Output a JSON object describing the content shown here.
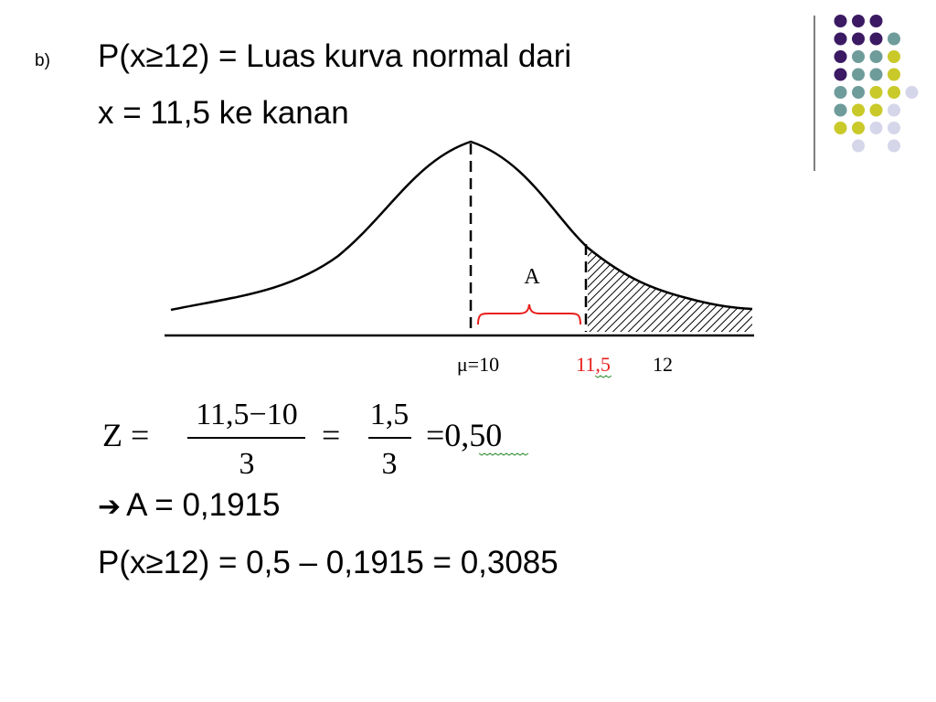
{
  "bullet": "b)",
  "line1": "P(x≥12) = Luas kurva normal dari",
  "line2": "x = 11,5 ke kanan",
  "figure": {
    "area_label": "A",
    "mu_label": "μ=10",
    "x115_label": "11,5",
    "x12_label": "12"
  },
  "formula": {
    "z_label": "Z =",
    "frac1_num": "11,5−10",
    "frac1_den": "3",
    "eq1": "=",
    "frac2_num": "1,5",
    "frac2_den": "3",
    "result": "=0,50"
  },
  "line3_arrow": "➔",
  "line3_text": "A = 0,1915",
  "line4": "P(x≥12) = 0,5 – 0,1915 = 0,3085",
  "colors": {
    "purple": "#3b1a63",
    "teal": "#6e9c9b",
    "yellow": "#c9c92a",
    "lavender": "#d6d6ea",
    "accent_red": "#e8201d"
  }
}
